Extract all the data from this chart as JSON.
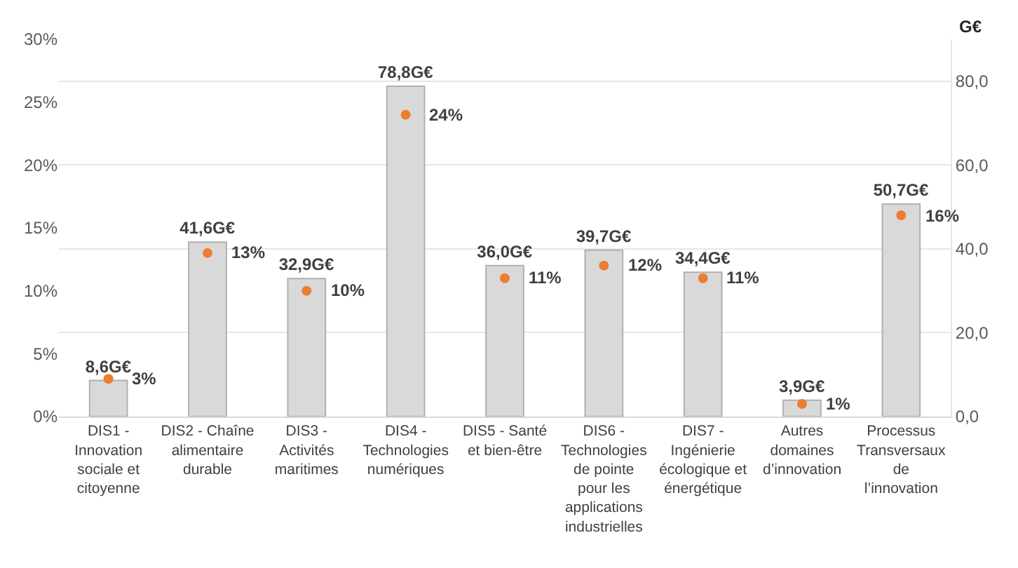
{
  "chart_data": {
    "type": "bar",
    "y2label": "G€",
    "categories": [
      "DIS1 - Innovation sociale et citoyenne",
      "DIS2 - Chaîne alimentaire durable",
      "DIS3 - Activités maritimes",
      "DIS4 - Technologies numériques",
      "DIS5 - Santé et bien-être",
      "DIS6 - Technologies de pointe pour les applications industrielles",
      "DIS7 - Ingénierie écologique et énergétique",
      "Autres domaines d’innovation",
      "Processus Transversaux de l’innovation"
    ],
    "series": [
      {
        "axis": "y2",
        "color": "#d9d9d9",
        "values": [
          8.6,
          41.6,
          32.9,
          78.8,
          36.0,
          39.7,
          34.4,
          3.9,
          50.7
        ],
        "value_labels": [
          "8,6G€",
          "41,6G€",
          "32,9G€",
          "78,8G€",
          "36,0G€",
          "39,7G€",
          "34,4G€",
          "3,9G€",
          "50,7G€"
        ]
      },
      {
        "type": "scatter",
        "axis": "y",
        "color": "#ed7d31",
        "values": [
          3,
          13,
          10,
          24,
          11,
          12,
          11,
          1,
          16
        ],
        "value_labels": [
          "3%",
          "13%",
          "10%",
          "24%",
          "11%",
          "12%",
          "11%",
          "1%",
          "16%"
        ]
      }
    ],
    "ylim": [
      0,
      30
    ],
    "yticks": [
      {
        "value": 0,
        "label": "0%"
      },
      {
        "value": 5,
        "label": "5%"
      },
      {
        "value": 10,
        "label": "10%"
      },
      {
        "value": 15,
        "label": "15%"
      },
      {
        "value": 20,
        "label": "20%"
      },
      {
        "value": 25,
        "label": "25%"
      },
      {
        "value": 30,
        "label": "30%"
      }
    ],
    "y2lim": [
      0,
      90
    ],
    "y2ticks": [
      {
        "value": 0,
        "label": "0,0"
      },
      {
        "value": 20,
        "label": "20,0"
      },
      {
        "value": 40,
        "label": "40,0"
      },
      {
        "value": 60,
        "label": "60,0"
      },
      {
        "value": 80,
        "label": "80,0"
      }
    ],
    "grid": "y2",
    "marker": "circle"
  }
}
